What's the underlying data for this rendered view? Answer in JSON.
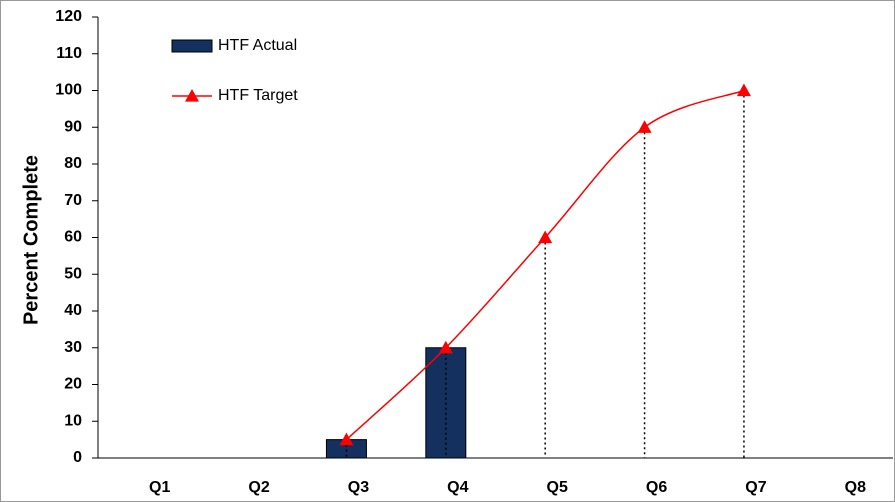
{
  "chart_data": {
    "type": "bar",
    "y_label": "Percent Complete",
    "categories": [
      "Q1",
      "Q2",
      "Q3",
      "Q4",
      "Q5",
      "Q6",
      "Q7",
      "Q8"
    ],
    "series": [
      {
        "name": "HTF Actual",
        "type": "bar",
        "color": "#14305e",
        "values": [
          null,
          null,
          5,
          30,
          null,
          null,
          null,
          null
        ]
      },
      {
        "name": "HTF Target",
        "type": "line",
        "color": "#ff0000",
        "values": [
          null,
          null,
          5,
          30,
          60,
          90,
          100,
          null
        ]
      }
    ],
    "ylim": [
      0,
      120
    ],
    "yticks": [
      0,
      10,
      20,
      30,
      40,
      50,
      60,
      70,
      80,
      90,
      100,
      110,
      120
    ],
    "grid": false,
    "legend": "upper left"
  }
}
